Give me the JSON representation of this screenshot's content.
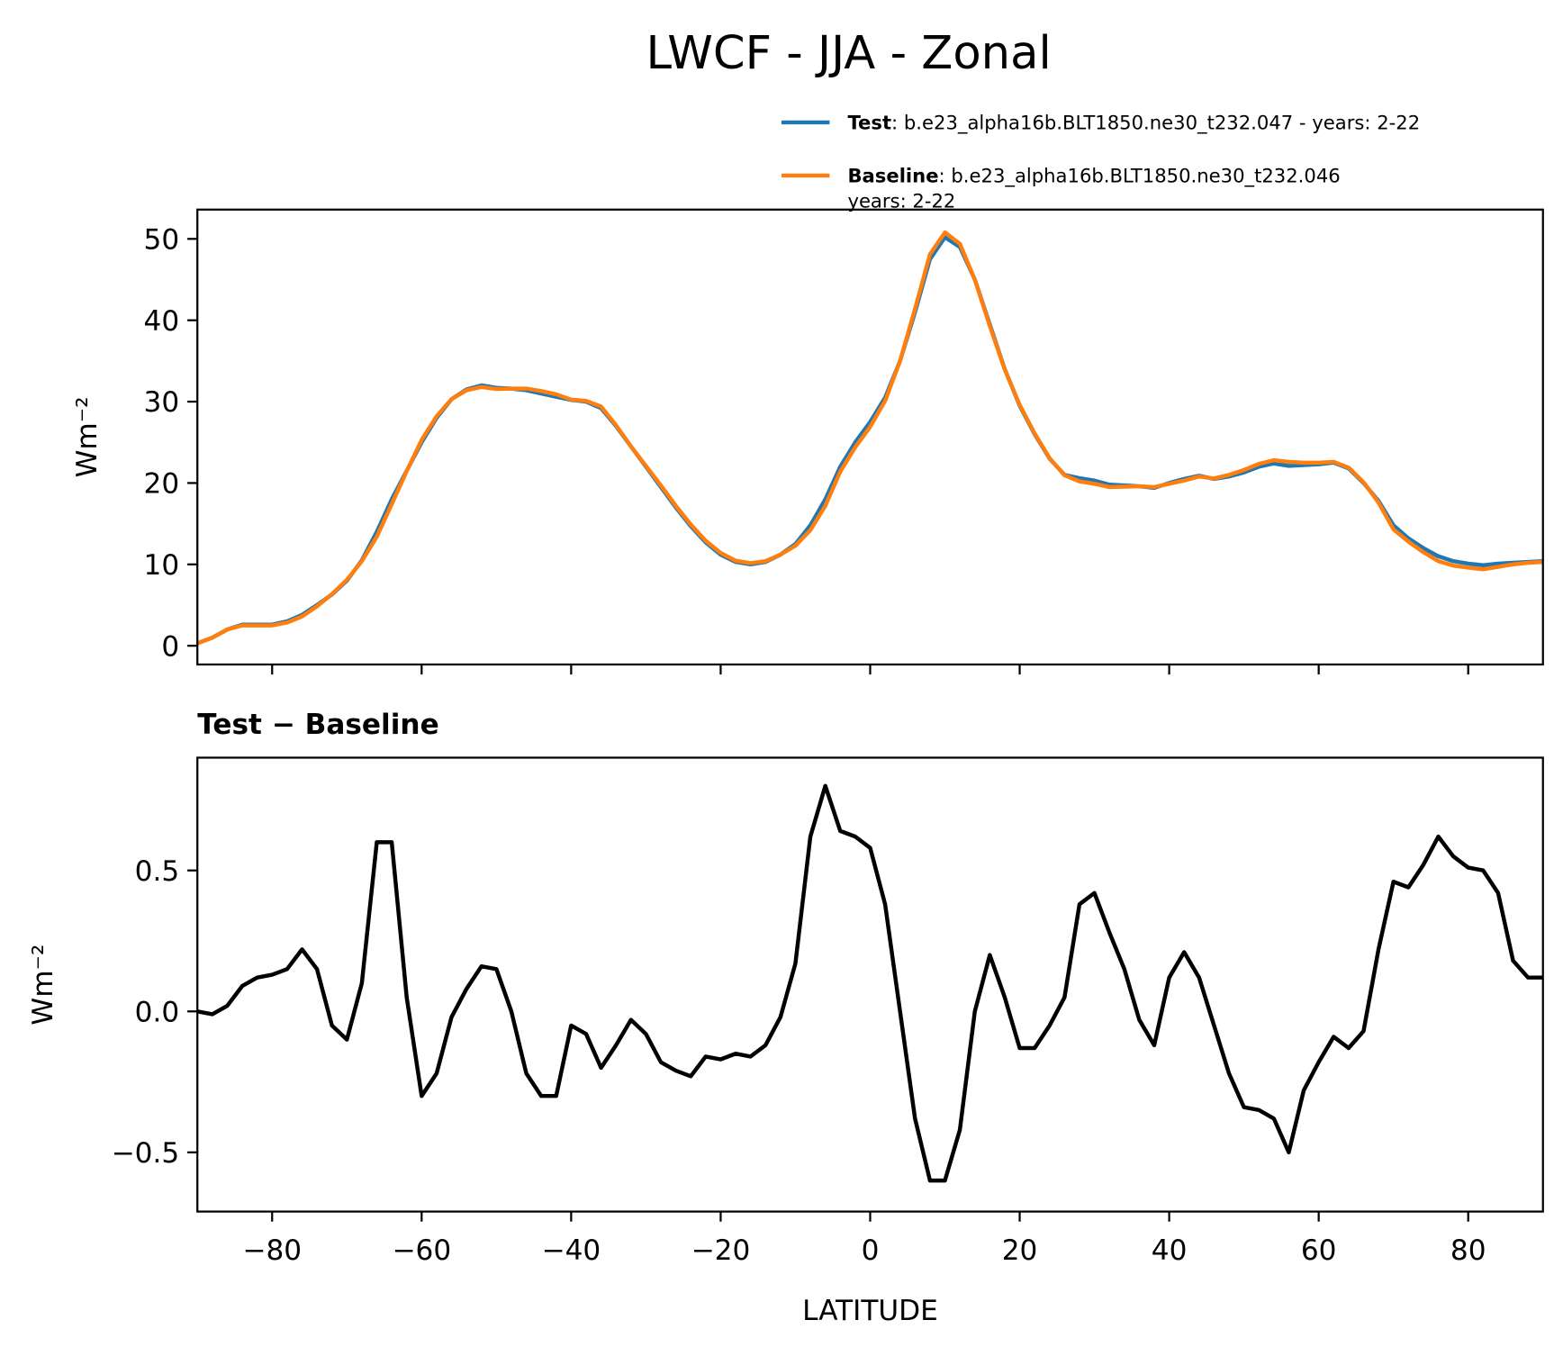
{
  "title": "LWCF - JJA - Zonal",
  "chart_data": [
    {
      "type": "line",
      "ylabel": "Wm⁻²",
      "legend": "upper right",
      "xlim": [
        -90,
        90
      ],
      "xticks": [
        -80,
        -60,
        -40,
        -20,
        0,
        20,
        40,
        60,
        80
      ],
      "ylim": [
        -2.3,
        53.6
      ],
      "yticks": [
        0,
        10,
        20,
        30,
        40,
        50
      ],
      "x": [
        -90,
        -88,
        -86,
        -84,
        -82,
        -80,
        -78,
        -76,
        -74,
        -72,
        -70,
        -68,
        -66,
        -64,
        -62,
        -60,
        -58,
        -56,
        -54,
        -52,
        -50,
        -48,
        -46,
        -44,
        -42,
        -40,
        -38,
        -36,
        -34,
        -32,
        -30,
        -28,
        -26,
        -24,
        -22,
        -20,
        -18,
        -16,
        -14,
        -12,
        -10,
        -8,
        -6,
        -4,
        -2,
        0,
        2,
        4,
        6,
        8,
        10,
        12,
        14,
        16,
        18,
        20,
        22,
        24,
        26,
        28,
        30,
        32,
        34,
        36,
        38,
        40,
        42,
        44,
        46,
        48,
        50,
        52,
        54,
        56,
        58,
        60,
        62,
        64,
        66,
        68,
        70,
        72,
        74,
        76,
        78,
        80,
        82,
        84,
        86,
        88,
        90
      ],
      "series": [
        {
          "name": "Test",
          "description": [
            ": b.e23_alpha16b.BLT1850.ne30_t232.047 - years: 2-22"
          ],
          "color": "#1f77b4",
          "values": [
            0.3,
            1.0,
            2.0,
            2.6,
            2.6,
            2.6,
            3.0,
            3.8,
            5.0,
            6.3,
            8.0,
            10.5,
            14.0,
            18.0,
            21.5,
            25.0,
            28.0,
            30.3,
            31.5,
            32.0,
            31.7,
            31.6,
            31.4,
            31.0,
            30.6,
            30.2,
            30.0,
            29.2,
            27.0,
            24.5,
            22.0,
            19.5,
            17.0,
            14.7,
            12.7,
            11.2,
            10.3,
            10.0,
            10.3,
            11.2,
            12.5,
            14.8,
            18.0,
            22.0,
            25.0,
            27.5,
            30.5,
            35.0,
            41.0,
            47.5,
            50.2,
            49.0,
            45.0,
            39.5,
            34.0,
            29.5,
            26.0,
            23.0,
            21.0,
            20.6,
            20.3,
            19.8,
            19.7,
            19.6,
            19.4,
            20.0,
            20.5,
            20.9,
            20.5,
            20.8,
            21.3,
            22.0,
            22.4,
            22.1,
            22.2,
            22.3,
            22.5,
            21.8,
            20.0,
            17.8,
            14.8,
            13.2,
            12.0,
            11.0,
            10.4,
            10.1,
            9.9,
            10.1,
            10.2,
            10.3,
            10.4
          ]
        },
        {
          "name": "Baseline",
          "description": [
            ": b.e23_alpha16b.BLT1850.ne30_t232.046",
            "years: 2-22"
          ],
          "color": "#ff7f0e",
          "values": [
            0.3,
            1.0,
            2.0,
            2.5,
            2.5,
            2.5,
            2.85,
            3.6,
            4.85,
            6.35,
            8.1,
            10.4,
            13.4,
            17.4,
            21.45,
            25.3,
            28.2,
            30.3,
            31.4,
            31.8,
            31.55,
            31.6,
            31.6,
            31.3,
            30.9,
            30.25,
            30.1,
            29.4,
            27.1,
            24.5,
            22.1,
            19.7,
            17.2,
            14.9,
            12.9,
            11.4,
            10.45,
            10.15,
            10.4,
            11.2,
            12.3,
            14.2,
            17.2,
            21.4,
            24.4,
            26.9,
            30.1,
            35.0,
            41.4,
            48.1,
            50.8,
            49.4,
            45.0,
            39.3,
            33.95,
            29.6,
            26.1,
            23.05,
            20.95,
            20.2,
            19.9,
            19.5,
            19.55,
            19.6,
            19.5,
            19.9,
            20.3,
            20.8,
            20.55,
            21.0,
            21.6,
            22.35,
            22.8,
            22.6,
            22.5,
            22.5,
            22.6,
            21.9,
            20.1,
            17.6,
            14.3,
            12.8,
            11.5,
            10.4,
            9.85,
            9.6,
            9.4,
            9.7,
            10.0,
            10.2,
            10.3
          ]
        }
      ]
    },
    {
      "type": "line",
      "title": "Test − Baseline",
      "ylabel": "Wm⁻²",
      "xlabel": "LATITUDE",
      "xlim": [
        -90,
        90
      ],
      "xticks": [
        {
          "value": -80,
          "label": "−80"
        },
        {
          "value": -60,
          "label": "−60"
        },
        {
          "value": -40,
          "label": "−40"
        },
        {
          "value": -20,
          "label": "−20"
        },
        0,
        20,
        40,
        60,
        80
      ],
      "ylim": [
        -0.71,
        0.9
      ],
      "yticks": [
        {
          "value": -0.5,
          "label": "−0.5"
        },
        {
          "value": 0,
          "label": "0.0"
        },
        0.5
      ],
      "x": [
        -90,
        -88,
        -86,
        -84,
        -82,
        -80,
        -78,
        -76,
        -74,
        -72,
        -70,
        -68,
        -66,
        -64,
        -62,
        -60,
        -58,
        -56,
        -54,
        -52,
        -50,
        -48,
        -46,
        -44,
        -42,
        -40,
        -38,
        -36,
        -34,
        -32,
        -30,
        -28,
        -26,
        -24,
        -22,
        -20,
        -18,
        -16,
        -14,
        -12,
        -10,
        -8,
        -6,
        -4,
        -2,
        0,
        2,
        4,
        6,
        8,
        10,
        12,
        14,
        16,
        18,
        20,
        22,
        24,
        26,
        28,
        30,
        32,
        34,
        36,
        38,
        40,
        42,
        44,
        46,
        48,
        50,
        52,
        54,
        56,
        58,
        60,
        62,
        64,
        66,
        68,
        70,
        72,
        74,
        76,
        78,
        80,
        82,
        84,
        86,
        88,
        90
      ],
      "series": [
        {
          "color": "#000000",
          "values": [
            0.0,
            -0.01,
            0.02,
            0.09,
            0.12,
            0.13,
            0.15,
            0.22,
            0.15,
            -0.05,
            -0.1,
            0.1,
            0.6,
            0.6,
            0.05,
            -0.3,
            -0.22,
            -0.02,
            0.08,
            0.16,
            0.15,
            0.0,
            -0.22,
            -0.3,
            -0.3,
            -0.05,
            -0.08,
            -0.2,
            -0.12,
            -0.03,
            -0.08,
            -0.18,
            -0.21,
            -0.23,
            -0.16,
            -0.17,
            -0.15,
            -0.16,
            -0.12,
            -0.02,
            0.17,
            0.62,
            0.8,
            0.64,
            0.62,
            0.58,
            0.38,
            0.0,
            -0.38,
            -0.6,
            -0.6,
            -0.42,
            0.0,
            0.2,
            0.05,
            -0.13,
            -0.13,
            -0.05,
            0.05,
            0.38,
            0.42,
            0.28,
            0.15,
            -0.03,
            -0.12,
            0.12,
            0.21,
            0.12,
            -0.05,
            -0.22,
            -0.34,
            -0.35,
            -0.38,
            -0.5,
            -0.28,
            -0.18,
            -0.09,
            -0.13,
            -0.07,
            0.22,
            0.46,
            0.44,
            0.52,
            0.62,
            0.55,
            0.51,
            0.5,
            0.42,
            0.18,
            0.12,
            0.12
          ]
        }
      ]
    }
  ]
}
